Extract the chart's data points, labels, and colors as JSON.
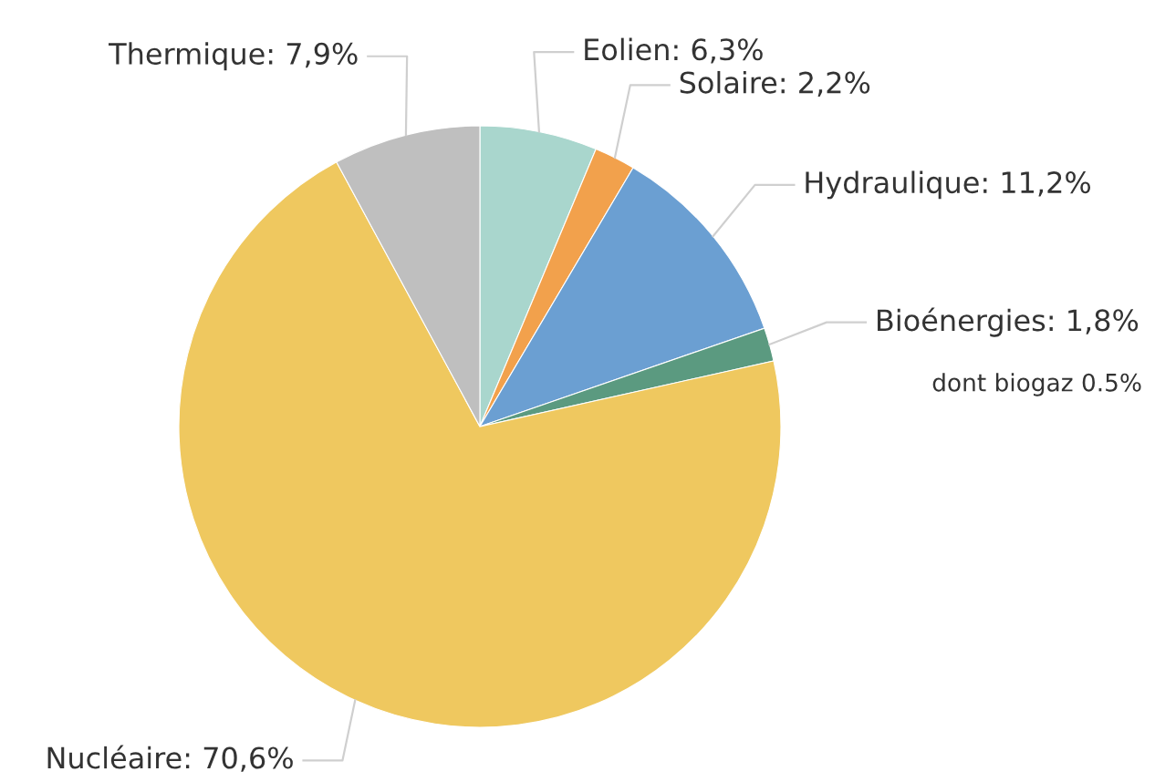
{
  "chart_data": {
    "type": "pie",
    "categories": [
      "Eolien",
      "Solaire",
      "Hydraulique",
      "Bioénergies",
      "Nucléaire",
      "Thermique"
    ],
    "values": [
      6.3,
      2.2,
      11.2,
      1.8,
      70.6,
      7.9
    ],
    "colors": [
      "#a9d6cd",
      "#f2a14c",
      "#6b9fd2",
      "#5b9a80",
      "#efc85f",
      "#bfbfbf"
    ],
    "value_labels": [
      "6,3%",
      "2,2%",
      "11,2%",
      "1,8%",
      "70,6%",
      "7,9%"
    ],
    "annotations": [
      "dont biogaz 0.5%"
    ]
  }
}
